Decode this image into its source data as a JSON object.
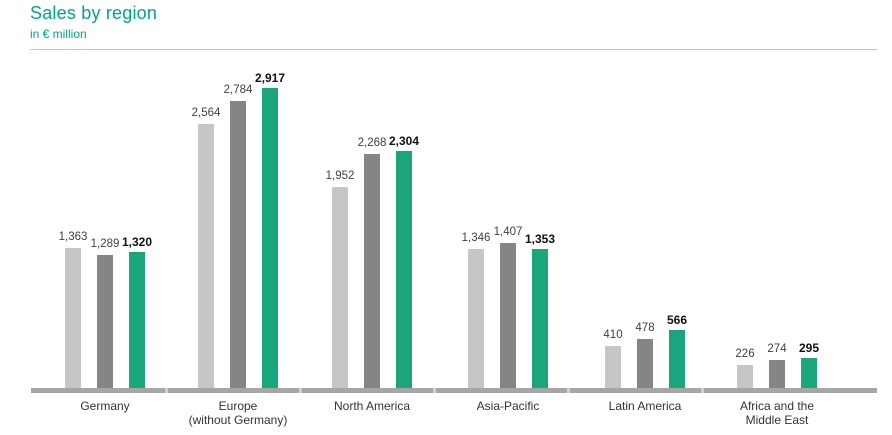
{
  "header": {
    "title": "Sales by region",
    "subtitle": "in € million"
  },
  "colors": {
    "title_green": "#00a587",
    "bar_series_1": "#c6c6c6",
    "bar_series_2": "#858585",
    "bar_series_3": "#1aa57c",
    "axis_gray": "#a6a6a6",
    "axis_notch_gray": "#d2d2d2",
    "header_rule_gray": "#c4c4c4",
    "value_label_gray": "#404040",
    "value_label_bold": "#111111",
    "category_label_gray": "#333333"
  },
  "chart_data": {
    "type": "bar",
    "title": "Sales by region",
    "subtitle": "in € million",
    "unit": "€ million",
    "categories": [
      "Germany",
      "Europe\n(without Germany)",
      "North America",
      "Asia-Pacific",
      "Latin America",
      "Africa and the\nMiddle East"
    ],
    "series": [
      {
        "name": "series-1-light-gray",
        "values": [
          1363,
          2564,
          1952,
          1346,
          410,
          226
        ]
      },
      {
        "name": "series-2-dark-gray",
        "values": [
          1289,
          2784,
          2268,
          1407,
          478,
          274
        ]
      },
      {
        "name": "series-3-green-bold",
        "values": [
          1320,
          2917,
          2304,
          1353,
          566,
          295
        ]
      }
    ],
    "value_labels": [
      [
        "1,363",
        "2,564",
        "1,952",
        "1,346",
        "410",
        "226"
      ],
      [
        "1,289",
        "2,784",
        "2,268",
        "1,407",
        "478",
        "274"
      ],
      [
        "1,320",
        "2,917",
        "2,304",
        "1,353",
        "566",
        "295"
      ]
    ],
    "legend": "none",
    "grid": "off",
    "ylim": [
      0,
      3000
    ],
    "data_labels": "above bars, third series bold"
  }
}
